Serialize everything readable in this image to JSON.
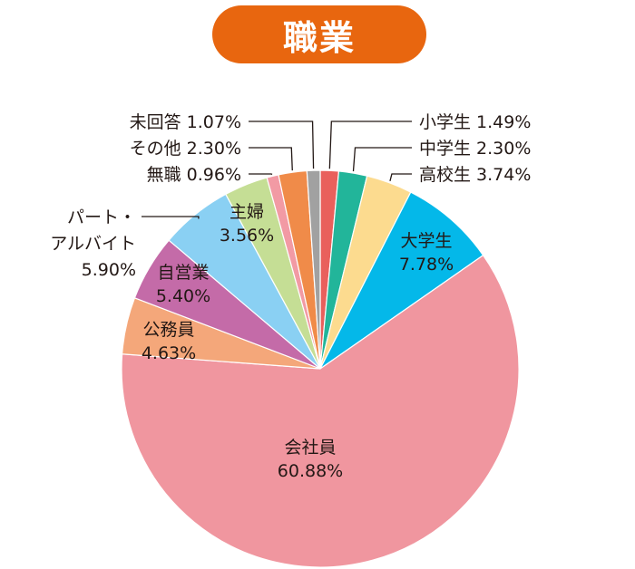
{
  "title": "職業",
  "colors": {
    "title_bg": "#e8660f"
  },
  "chart_data": {
    "type": "pie",
    "title": "職業",
    "unit": "%",
    "slices": [
      {
        "label": "小学生",
        "value": 1.49,
        "display": "1.49%",
        "color": "#e9605c"
      },
      {
        "label": "中学生",
        "value": 2.3,
        "display": "2.30%",
        "color": "#22b59a"
      },
      {
        "label": "高校生",
        "value": 3.74,
        "display": "3.74%",
        "color": "#fcdb8f"
      },
      {
        "label": "大学生",
        "value": 7.78,
        "display": "7.78%",
        "color": "#04b8e9"
      },
      {
        "label": "会社員",
        "value": 60.88,
        "display": "60.88%",
        "color": "#f0969f"
      },
      {
        "label": "公務員",
        "value": 4.63,
        "display": "4.63%",
        "color": "#f4a77a"
      },
      {
        "label": "自営業",
        "value": 5.4,
        "display": "5.40%",
        "color": "#c46ba8"
      },
      {
        "label": "パート・アルバイト",
        "value": 5.9,
        "display": "5.90%",
        "color": "#8ad0f3"
      },
      {
        "label": "主婦",
        "value": 3.56,
        "display": "3.56%",
        "color": "#c5de95"
      },
      {
        "label": "無職",
        "value": 0.96,
        "display": "0.96%",
        "color": "#f29aa4"
      },
      {
        "label": "その他",
        "value": 2.3,
        "display": "2.30%",
        "color": "#f08b49"
      },
      {
        "label": "未回答",
        "value": 1.07,
        "display": "1.07%",
        "color": "#a1a1a1"
      }
    ]
  }
}
